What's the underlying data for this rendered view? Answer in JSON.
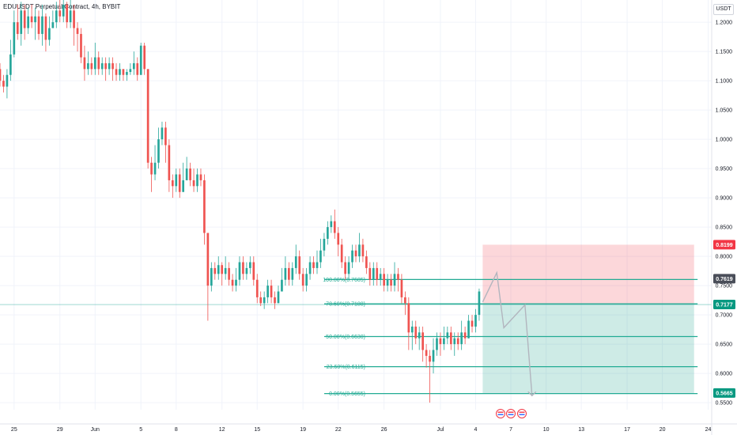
{
  "header": {
    "title": "EDUUSDT Perpetual Contract, 4h, BYBIT",
    "currency": "USDT"
  },
  "chart_data": {
    "type": "candlestick",
    "ylim": [
      0.538,
      1.238
    ],
    "xlim": [
      0,
      202
    ],
    "y_ticks": [
      {
        "v": 1.2,
        "label": "1.2000"
      },
      {
        "v": 1.15,
        "label": "1.1500"
      },
      {
        "v": 1.1,
        "label": "1.1000"
      },
      {
        "v": 1.05,
        "label": "1.0500"
      },
      {
        "v": 1.0,
        "label": "1.0000"
      },
      {
        "v": 0.95,
        "label": "0.9500"
      },
      {
        "v": 0.9,
        "label": "0.9000"
      },
      {
        "v": 0.85,
        "label": "0.8500"
      },
      {
        "v": 0.8,
        "label": "0.8000"
      },
      {
        "v": 0.75,
        "label": "0.7500"
      },
      {
        "v": 0.7,
        "label": "0.7000"
      },
      {
        "v": 0.65,
        "label": "0.6500"
      },
      {
        "v": 0.6,
        "label": "0.6000"
      },
      {
        "v": 0.55,
        "label": "0.5500"
      }
    ],
    "x_ticks": [
      {
        "i": 4,
        "label": "25"
      },
      {
        "i": 17,
        "label": "29"
      },
      {
        "i": 27,
        "label": "Jun"
      },
      {
        "i": 40,
        "label": "5"
      },
      {
        "i": 50,
        "label": "8"
      },
      {
        "i": 63,
        "label": "12"
      },
      {
        "i": 73,
        "label": "15"
      },
      {
        "i": 86,
        "label": "19"
      },
      {
        "i": 96,
        "label": "22"
      },
      {
        "i": 109,
        "label": "26"
      },
      {
        "i": 125,
        "label": "Jul"
      },
      {
        "i": 135,
        "label": "4"
      },
      {
        "i": 145,
        "label": "7"
      },
      {
        "i": 155,
        "label": "10"
      },
      {
        "i": 165,
        "label": "13"
      },
      {
        "i": 178,
        "label": "17"
      },
      {
        "i": 188,
        "label": "20"
      },
      {
        "i": 201,
        "label": "24"
      }
    ],
    "price_badges": [
      {
        "v": 0.8199,
        "label": "0.8199",
        "color": "#f23645"
      },
      {
        "v": 0.7619,
        "label": "0.7619",
        "color": "#4a4e59"
      },
      {
        "v": 0.7177,
        "label": "0.7177",
        "color": "#089981"
      },
      {
        "v": 0.5665,
        "label": "0.5665",
        "color": "#089981"
      }
    ],
    "fib_levels": [
      {
        "v": 0.7605,
        "label": "100.00%(0.7605)"
      },
      {
        "v": 0.7188,
        "label": "78.60%(0.7188)"
      },
      {
        "v": 0.663,
        "label": "50.00%(0.6630)"
      },
      {
        "v": 0.6115,
        "label": "23.60%(0.6115)"
      },
      {
        "v": 0.5655,
        "label": "0.00%(0.5655)"
      }
    ],
    "fib_range": [
      0,
      198
    ],
    "current_price": 0.7177,
    "position": {
      "entry": 0.7177,
      "stop": 0.8199,
      "target": 0.5665,
      "x_start": 137,
      "x_end": 197
    },
    "projection_path": [
      [
        137,
        0.722
      ],
      [
        141,
        0.772
      ],
      [
        143,
        0.678
      ],
      [
        149,
        0.717
      ],
      [
        151,
        0.562
      ]
    ],
    "candles": [
      [
        0,
        1.12,
        1.1,
        1.13,
        1.09
      ],
      [
        1,
        1.1,
        1.09,
        1.11,
        1.08
      ],
      [
        2,
        1.09,
        1.11,
        1.12,
        1.07
      ],
      [
        3,
        1.11,
        1.145,
        1.17,
        1.1
      ],
      [
        4,
        1.145,
        1.2,
        1.22,
        1.14
      ],
      [
        5,
        1.2,
        1.18,
        1.23,
        1.17
      ],
      [
        6,
        1.18,
        1.22,
        1.235,
        1.16
      ],
      [
        7,
        1.22,
        1.19,
        1.23,
        1.17
      ],
      [
        8,
        1.19,
        1.21,
        1.225,
        1.18
      ],
      [
        9,
        1.21,
        1.2,
        1.23,
        1.19
      ],
      [
        10,
        1.2,
        1.21,
        1.225,
        1.17
      ],
      [
        11,
        1.21,
        1.18,
        1.22,
        1.17
      ],
      [
        12,
        1.18,
        1.21,
        1.23,
        1.16
      ],
      [
        13,
        1.21,
        1.17,
        1.215,
        1.15
      ],
      [
        14,
        1.17,
        1.19,
        1.21,
        1.16
      ],
      [
        15,
        1.19,
        1.2,
        1.22,
        1.19
      ],
      [
        16,
        1.2,
        1.22,
        1.235,
        1.19
      ],
      [
        17,
        1.22,
        1.21,
        1.238,
        1.2
      ],
      [
        18,
        1.21,
        1.23,
        1.238,
        1.2
      ],
      [
        19,
        1.23,
        1.2,
        1.235,
        1.19
      ],
      [
        20,
        1.2,
        1.22,
        1.238,
        1.19
      ],
      [
        21,
        1.22,
        1.19,
        1.23,
        1.16
      ],
      [
        22,
        1.19,
        1.18,
        1.2,
        1.15
      ],
      [
        23,
        1.18,
        1.14,
        1.19,
        1.13
      ],
      [
        24,
        1.14,
        1.12,
        1.16,
        1.1
      ],
      [
        25,
        1.12,
        1.13,
        1.15,
        1.11
      ],
      [
        26,
        1.13,
        1.12,
        1.14,
        1.11
      ],
      [
        27,
        1.12,
        1.14,
        1.165,
        1.11
      ],
      [
        28,
        1.14,
        1.12,
        1.15,
        1.11
      ],
      [
        29,
        1.12,
        1.13,
        1.14,
        1.11
      ],
      [
        30,
        1.13,
        1.12,
        1.14,
        1.1
      ],
      [
        31,
        1.12,
        1.13,
        1.14,
        1.11
      ],
      [
        32,
        1.13,
        1.12,
        1.14,
        1.1
      ],
      [
        33,
        1.12,
        1.11,
        1.13,
        1.1
      ],
      [
        34,
        1.11,
        1.12,
        1.13,
        1.1
      ],
      [
        35,
        1.12,
        1.11,
        1.12,
        1.1
      ],
      [
        36,
        1.11,
        1.115,
        1.12,
        1.1
      ],
      [
        37,
        1.115,
        1.12,
        1.13,
        1.11
      ],
      [
        38,
        1.12,
        1.13,
        1.15,
        1.11
      ],
      [
        39,
        1.13,
        1.11,
        1.14,
        1.1
      ],
      [
        40,
        1.11,
        1.16,
        1.165,
        1.11
      ],
      [
        41,
        1.16,
        1.12,
        1.165,
        1.11
      ],
      [
        42,
        1.12,
        0.96,
        1.12,
        0.95
      ],
      [
        43,
        0.96,
        0.94,
        0.97,
        0.91
      ],
      [
        44,
        0.94,
        0.96,
        0.99,
        0.93
      ],
      [
        45,
        0.96,
        1.0,
        1.02,
        0.95
      ],
      [
        46,
        1.0,
        1.02,
        1.03,
        0.99
      ],
      [
        47,
        1.02,
        0.99,
        1.03,
        0.96
      ],
      [
        48,
        0.99,
        0.93,
        1.0,
        0.91
      ],
      [
        49,
        0.93,
        0.92,
        0.94,
        0.9
      ],
      [
        50,
        0.92,
        0.94,
        0.95,
        0.91
      ],
      [
        51,
        0.94,
        0.91,
        0.95,
        0.9
      ],
      [
        52,
        0.91,
        0.93,
        0.96,
        0.91
      ],
      [
        53,
        0.93,
        0.95,
        0.97,
        0.93
      ],
      [
        54,
        0.95,
        0.93,
        0.96,
        0.92
      ],
      [
        55,
        0.93,
        0.92,
        0.95,
        0.91
      ],
      [
        56,
        0.92,
        0.94,
        0.95,
        0.91
      ],
      [
        57,
        0.94,
        0.93,
        0.95,
        0.92
      ],
      [
        58,
        0.93,
        0.84,
        0.94,
        0.82
      ],
      [
        59,
        0.84,
        0.75,
        0.84,
        0.69
      ],
      [
        60,
        0.75,
        0.78,
        0.79,
        0.74
      ],
      [
        61,
        0.78,
        0.77,
        0.79,
        0.76
      ],
      [
        62,
        0.77,
        0.785,
        0.8,
        0.76
      ],
      [
        63,
        0.785,
        0.77,
        0.79,
        0.75
      ],
      [
        64,
        0.77,
        0.78,
        0.8,
        0.76
      ],
      [
        65,
        0.78,
        0.76,
        0.79,
        0.75
      ],
      [
        66,
        0.76,
        0.75,
        0.77,
        0.74
      ],
      [
        67,
        0.75,
        0.76,
        0.78,
        0.74
      ],
      [
        68,
        0.76,
        0.79,
        0.8,
        0.75
      ],
      [
        69,
        0.79,
        0.77,
        0.8,
        0.76
      ],
      [
        70,
        0.77,
        0.78,
        0.79,
        0.76
      ],
      [
        71,
        0.78,
        0.79,
        0.8,
        0.77
      ],
      [
        72,
        0.79,
        0.76,
        0.8,
        0.75
      ],
      [
        73,
        0.76,
        0.73,
        0.77,
        0.72
      ],
      [
        74,
        0.73,
        0.72,
        0.74,
        0.715
      ],
      [
        75,
        0.72,
        0.73,
        0.74,
        0.71
      ],
      [
        76,
        0.73,
        0.75,
        0.76,
        0.72
      ],
      [
        77,
        0.75,
        0.73,
        0.76,
        0.72
      ],
      [
        78,
        0.73,
        0.72,
        0.74,
        0.71
      ],
      [
        79,
        0.72,
        0.74,
        0.75,
        0.72
      ],
      [
        80,
        0.74,
        0.76,
        0.78,
        0.74
      ],
      [
        81,
        0.76,
        0.78,
        0.8,
        0.75
      ],
      [
        82,
        0.78,
        0.76,
        0.79,
        0.75
      ],
      [
        83,
        0.76,
        0.78,
        0.79,
        0.75
      ],
      [
        84,
        0.78,
        0.8,
        0.82,
        0.77
      ],
      [
        85,
        0.8,
        0.77,
        0.81,
        0.76
      ],
      [
        86,
        0.77,
        0.75,
        0.78,
        0.74
      ],
      [
        87,
        0.75,
        0.77,
        0.78,
        0.74
      ],
      [
        88,
        0.77,
        0.79,
        0.8,
        0.76
      ],
      [
        89,
        0.79,
        0.78,
        0.8,
        0.77
      ],
      [
        90,
        0.78,
        0.79,
        0.81,
        0.77
      ],
      [
        91,
        0.79,
        0.81,
        0.83,
        0.78
      ],
      [
        92,
        0.81,
        0.83,
        0.84,
        0.8
      ],
      [
        93,
        0.83,
        0.85,
        0.86,
        0.82
      ],
      [
        94,
        0.85,
        0.86,
        0.87,
        0.84
      ],
      [
        95,
        0.86,
        0.84,
        0.88,
        0.83
      ],
      [
        96,
        0.84,
        0.82,
        0.85,
        0.8
      ],
      [
        97,
        0.82,
        0.79,
        0.83,
        0.78
      ],
      [
        98,
        0.79,
        0.77,
        0.8,
        0.76
      ],
      [
        99,
        0.77,
        0.79,
        0.8,
        0.76
      ],
      [
        100,
        0.79,
        0.81,
        0.82,
        0.78
      ],
      [
        101,
        0.81,
        0.8,
        0.82,
        0.79
      ],
      [
        102,
        0.8,
        0.82,
        0.84,
        0.79
      ],
      [
        103,
        0.82,
        0.8,
        0.83,
        0.79
      ],
      [
        104,
        0.8,
        0.78,
        0.81,
        0.77
      ],
      [
        105,
        0.78,
        0.76,
        0.79,
        0.75
      ],
      [
        106,
        0.76,
        0.78,
        0.79,
        0.75
      ],
      [
        107,
        0.78,
        0.76,
        0.79,
        0.75
      ],
      [
        108,
        0.76,
        0.77,
        0.78,
        0.75
      ],
      [
        109,
        0.77,
        0.75,
        0.78,
        0.74
      ],
      [
        110,
        0.75,
        0.76,
        0.77,
        0.74
      ],
      [
        111,
        0.76,
        0.75,
        0.77,
        0.74
      ],
      [
        112,
        0.75,
        0.77,
        0.79,
        0.74
      ],
      [
        113,
        0.77,
        0.76,
        0.78,
        0.74
      ],
      [
        114,
        0.76,
        0.73,
        0.77,
        0.72
      ],
      [
        115,
        0.73,
        0.72,
        0.74,
        0.7
      ],
      [
        116,
        0.72,
        0.67,
        0.73,
        0.64
      ],
      [
        117,
        0.67,
        0.68,
        0.69,
        0.64
      ],
      [
        118,
        0.68,
        0.66,
        0.69,
        0.65
      ],
      [
        119,
        0.66,
        0.67,
        0.68,
        0.64
      ],
      [
        120,
        0.67,
        0.64,
        0.68,
        0.62
      ],
      [
        121,
        0.64,
        0.63,
        0.65,
        0.61
      ],
      [
        122,
        0.63,
        0.62,
        0.64,
        0.55
      ],
      [
        123,
        0.62,
        0.64,
        0.66,
        0.6
      ],
      [
        124,
        0.64,
        0.66,
        0.67,
        0.63
      ],
      [
        125,
        0.66,
        0.65,
        0.67,
        0.63
      ],
      [
        126,
        0.65,
        0.66,
        0.68,
        0.64
      ],
      [
        127,
        0.66,
        0.67,
        0.68,
        0.65
      ],
      [
        128,
        0.67,
        0.65,
        0.68,
        0.64
      ],
      [
        129,
        0.65,
        0.66,
        0.67,
        0.63
      ],
      [
        130,
        0.66,
        0.65,
        0.67,
        0.64
      ],
      [
        131,
        0.65,
        0.67,
        0.69,
        0.64
      ],
      [
        132,
        0.67,
        0.66,
        0.68,
        0.65
      ],
      [
        133,
        0.66,
        0.69,
        0.7,
        0.66
      ],
      [
        134,
        0.69,
        0.68,
        0.7,
        0.67
      ],
      [
        135,
        0.68,
        0.7,
        0.71,
        0.67
      ],
      [
        136,
        0.7,
        0.74,
        0.745,
        0.69
      ]
    ]
  }
}
